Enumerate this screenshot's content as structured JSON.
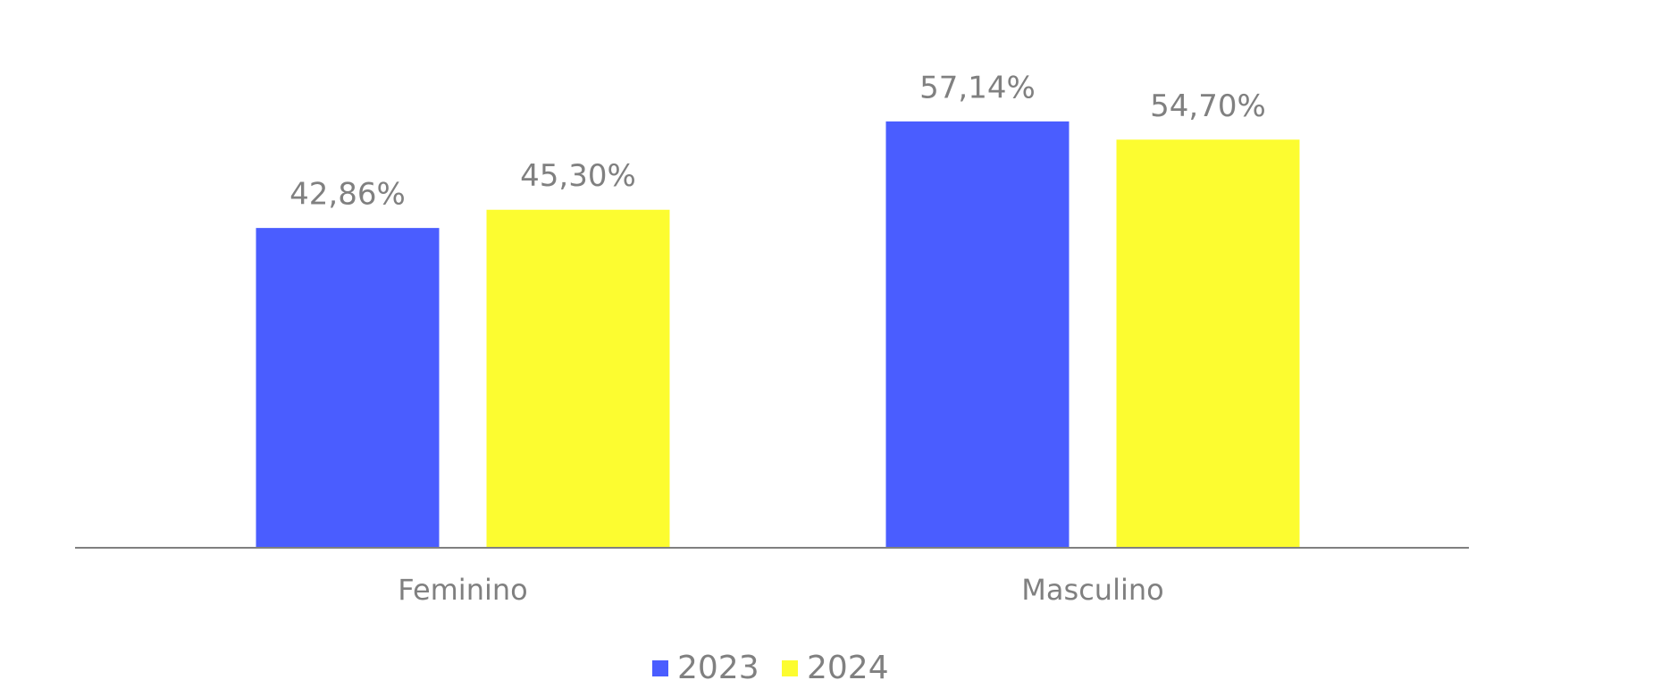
{
  "chart_data": {
    "type": "bar",
    "categories": [
      "Feminino",
      "Masculino"
    ],
    "series": [
      {
        "name": "2023",
        "color": "#4a5dff",
        "values": [
          42.86,
          57.14
        ],
        "value_labels": [
          "42,86%",
          "57,14%"
        ]
      },
      {
        "name": "2024",
        "color": "#fcfc30",
        "values": [
          45.3,
          54.7
        ],
        "value_labels": [
          "45,30%",
          "54,70%"
        ]
      }
    ],
    "ylim": [
      0,
      60
    ]
  }
}
